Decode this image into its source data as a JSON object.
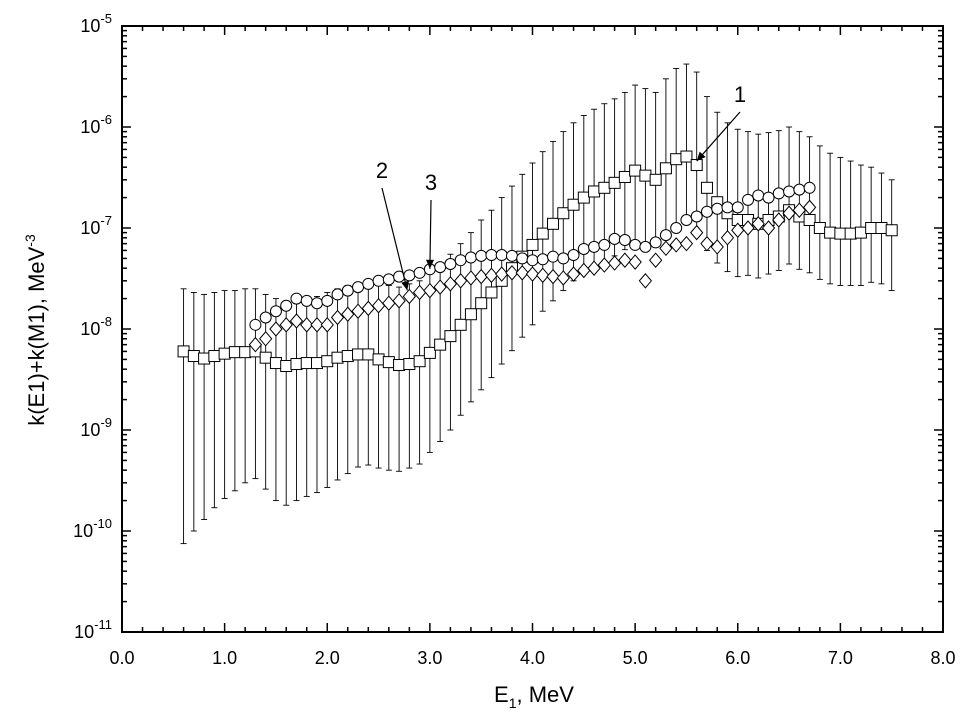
{
  "chart_data": {
    "type": "scatter",
    "title": "",
    "xlabel": {
      "main": "E",
      "sub": "1",
      "rest": ", MeV"
    },
    "ylabel": {
      "main": "k(E1)+k(M1), MeV",
      "sup": "-3"
    },
    "xlim": [
      0,
      8
    ],
    "ylim": [
      1e-11,
      1e-05
    ],
    "yscale": "log",
    "grid": false,
    "legend": "none",
    "x_ticks": [
      "0.0",
      "1.0",
      "2.0",
      "3.0",
      "4.0",
      "5.0",
      "6.0",
      "7.0",
      "8.0"
    ],
    "y_ticks": [
      {
        "base": "10",
        "exp": "-11"
      },
      {
        "base": "10",
        "exp": "-10"
      },
      {
        "base": "10",
        "exp": "-9"
      },
      {
        "base": "10",
        "exp": "-8"
      },
      {
        "base": "10",
        "exp": "-7"
      },
      {
        "base": "10",
        "exp": "-6"
      },
      {
        "base": "10",
        "exp": "-5"
      }
    ],
    "annotations": [
      {
        "text": "1",
        "target": [
          5.6,
          4.2e-07
        ]
      },
      {
        "text": "2",
        "target": [
          2.78,
          2.2e-08
        ]
      },
      {
        "text": "3",
        "target": [
          3.0,
          3.6e-08
        ]
      }
    ],
    "series": [
      {
        "name": "1",
        "marker": "square",
        "x": [
          0.6,
          0.7,
          0.8,
          0.9,
          1.0,
          1.1,
          1.2,
          1.3,
          1.4,
          1.5,
          1.6,
          1.7,
          1.8,
          1.9,
          2.0,
          2.1,
          2.2,
          2.3,
          2.4,
          2.5,
          2.6,
          2.7,
          2.8,
          2.9,
          3.0,
          3.1,
          3.2,
          3.3,
          3.4,
          3.5,
          3.6,
          3.7,
          3.8,
          3.9,
          4.0,
          4.1,
          4.2,
          4.3,
          4.4,
          4.5,
          4.6,
          4.7,
          4.8,
          4.9,
          5.0,
          5.1,
          5.2,
          5.3,
          5.4,
          5.5,
          5.6,
          5.7,
          5.8,
          5.9,
          6.0,
          6.1,
          6.2,
          6.3,
          6.4,
          6.5,
          6.6,
          6.7,
          6.8,
          6.9,
          7.0,
          7.1,
          7.2,
          7.3,
          7.4,
          7.5
        ],
        "y": [
          6e-09,
          5.4e-09,
          5.1e-09,
          5.4e-09,
          5.7e-09,
          5.9e-09,
          5.9e-09,
          6e-09,
          5.2e-09,
          4.6e-09,
          4.3e-09,
          4.5e-09,
          4.6e-09,
          4.6e-09,
          4.8e-09,
          5.2e-09,
          5.4e-09,
          5.6e-09,
          5.6e-09,
          5e-09,
          4.7e-09,
          4.4e-09,
          4.5e-09,
          4.8e-09,
          5.8e-09,
          7e-09,
          8.5e-09,
          1.1e-08,
          1.4e-08,
          1.8e-08,
          2.3e-08,
          3e-08,
          4e-08,
          5.2e-08,
          6.8e-08,
          8.8e-08,
          1.1e-07,
          1.4e-07,
          1.7e-07,
          2e-07,
          2.3e-07,
          2.5e-07,
          2.8e-07,
          3.2e-07,
          3.7e-07,
          3.3e-07,
          3e-07,
          3.9e-07,
          4.8e-07,
          5.1e-07,
          4.2e-07,
          2.5e-07,
          1.8e-07,
          1.4e-07,
          1.2e-07,
          1.2e-07,
          1.1e-07,
          1.2e-07,
          1.3e-07,
          1.5e-07,
          1.3e-07,
          1.2e-07,
          1e-07,
          9e-08,
          8.8e-08,
          8.8e-08,
          9e-08,
          1e-07,
          1e-07,
          9.5e-08
        ],
        "err_low": [
          7.5e-11,
          1e-10,
          1.3e-10,
          1.7e-10,
          2.1e-10,
          2.5e-10,
          3e-10,
          3.3e-10,
          2.6e-10,
          2e-10,
          1.8e-10,
          2e-10,
          2.2e-10,
          2.4e-10,
          2.7e-10,
          3.2e-10,
          3.7e-10,
          4.3e-10,
          4.5e-10,
          4.2e-10,
          4e-10,
          3.9e-10,
          4.2e-10,
          4.6e-10,
          6e-10,
          7.7e-10,
          1e-09,
          1.4e-09,
          1.9e-09,
          2.5e-09,
          3.3e-09,
          4.5e-09,
          6.1e-09,
          8.3e-09,
          1.1e-08,
          1.5e-08,
          1.9e-08,
          2.4e-08,
          3e-08,
          3.6e-08,
          4.2e-08,
          4.7e-08,
          5.3e-08,
          6.1e-08,
          7.2e-08,
          7e-08,
          6.8e-08,
          8.6e-08,
          1e-07,
          1.1e-07,
          9.5e-08,
          6e-08,
          4.5e-08,
          3.7e-08,
          3.3e-08,
          3.4e-08,
          3.2e-08,
          3.5e-08,
          3.8e-08,
          4.4e-08,
          3.9e-08,
          3.6e-08,
          3.1e-08,
          2.8e-08,
          2.7e-08,
          2.7e-08,
          2.7e-08,
          2.9e-08,
          2.8e-08,
          2.4e-08
        ],
        "err_high": [
          2.5e-08,
          2.3e-08,
          2.2e-08,
          2.3e-08,
          2.4e-08,
          2.4e-08,
          2.5e-08,
          2.5e-08,
          2.2e-08,
          2e-08,
          1.9e-08,
          2e-08,
          2.1e-08,
          2.1e-08,
          2.3e-08,
          2.5e-08,
          2.7e-08,
          2.9e-08,
          3e-08,
          2.8e-08,
          2.7e-08,
          2.6e-08,
          2.8e-08,
          3e-08,
          3.6e-08,
          4.5e-08,
          5.5e-08,
          7e-08,
          9e-08,
          1.2e-07,
          1.5e-07,
          2e-07,
          2.6e-07,
          3.4e-07,
          4.4e-07,
          5.7e-07,
          7.2e-07,
          9e-07,
          1.1e-06,
          1.3e-06,
          1.5e-06,
          1.7e-06,
          1.9e-06,
          2.2e-06,
          2.6e-06,
          2.4e-06,
          2.2e-06,
          3e-06,
          3.8e-06,
          4.2e-06,
          3.5e-06,
          2e-06,
          1.4e-06,
          1.1e-06,
          9.5e-07,
          9e-07,
          8.5e-07,
          8.8e-07,
          9.2e-07,
          1e-06,
          9e-07,
          8e-07,
          6.5e-07,
          5.5e-07,
          5e-07,
          4.6e-07,
          4.2e-07,
          4e-07,
          3.5e-07,
          3e-07
        ]
      },
      {
        "name": "2",
        "marker": "diamond",
        "x": [
          1.3,
          1.4,
          1.5,
          1.6,
          1.7,
          1.8,
          1.9,
          2.0,
          2.1,
          2.2,
          2.3,
          2.4,
          2.5,
          2.6,
          2.7,
          2.8,
          2.9,
          3.0,
          3.1,
          3.2,
          3.3,
          3.4,
          3.5,
          3.6,
          3.7,
          3.8,
          3.9,
          4.0,
          4.1,
          4.2,
          4.3,
          4.4,
          4.5,
          4.6,
          4.7,
          4.8,
          4.9,
          5.0,
          5.1,
          5.2,
          5.3,
          5.4,
          5.5,
          5.6,
          5.7,
          5.8,
          5.9,
          6.0,
          6.1,
          6.2,
          6.3,
          6.4,
          6.5,
          6.6,
          6.7
        ],
        "y": [
          7e-09,
          8e-09,
          1e-08,
          1.1e-08,
          1.2e-08,
          1.1e-08,
          1.1e-08,
          1.1e-08,
          1.3e-08,
          1.4e-08,
          1.5e-08,
          1.6e-08,
          1.7e-08,
          1.8e-08,
          1.9e-08,
          2.1e-08,
          2.3e-08,
          2.4e-08,
          2.6e-08,
          2.8e-08,
          3e-08,
          3.2e-08,
          3.3e-08,
          3.4e-08,
          3.5e-08,
          3.6e-08,
          3.6e-08,
          3.5e-08,
          3.4e-08,
          3.3e-08,
          3.2e-08,
          3.5e-08,
          3.8e-08,
          4e-08,
          4.3e-08,
          4.5e-08,
          4.8e-08,
          4.6e-08,
          3e-08,
          4.8e-08,
          6.3e-08,
          6.8e-08,
          7e-08,
          9e-08,
          7e-08,
          6.5e-08,
          8e-08,
          9.5e-08,
          1e-07,
          1.1e-07,
          1e-07,
          1.2e-07,
          1.4e-07,
          1.5e-07,
          1.6e-07
        ],
        "err_low": [
          6.5e-09,
          7.4e-09,
          9.2e-09,
          1e-08,
          1.1e-08,
          1e-08,
          1e-08,
          1e-08,
          1.2e-08,
          1.3e-08,
          1.4e-08,
          1.5e-08,
          1.6e-08,
          1.7e-08,
          1.8e-08,
          2e-08,
          2.2e-08,
          2.3e-08,
          2.5e-08,
          2.7e-08,
          2.9e-08,
          3.1e-08,
          3.2e-08,
          3.3e-08,
          3.4e-08,
          3.5e-08,
          3.5e-08,
          3.4e-08,
          3.3e-08,
          3.2e-08,
          3.1e-08,
          3.4e-08,
          3.7e-08,
          3.9e-08,
          4.2e-08,
          4.4e-08,
          4.7e-08,
          4.5e-08,
          2.9e-08,
          4.7e-08,
          6.2e-08,
          6.7e-08,
          6.9e-08,
          8.9e-08,
          6.9e-08,
          6.4e-08,
          7.9e-08,
          9.4e-08,
          9.9e-08,
          1.09e-07,
          9.9e-08,
          1.19e-07,
          1.38e-07,
          1.48e-07,
          1.58e-07
        ],
        "err_high": [
          7.5e-09,
          8.6e-09,
          1.08e-08,
          1.2e-08,
          1.3e-08,
          1.2e-08,
          1.2e-08,
          1.2e-08,
          1.4e-08,
          1.5e-08,
          1.6e-08,
          1.7e-08,
          1.8e-08,
          1.9e-08,
          2e-08,
          2.2e-08,
          2.4e-08,
          2.5e-08,
          2.7e-08,
          2.9e-08,
          3.1e-08,
          3.3e-08,
          3.4e-08,
          3.5e-08,
          3.6e-08,
          3.7e-08,
          3.7e-08,
          3.6e-08,
          3.5e-08,
          3.4e-08,
          3.3e-08,
          3.6e-08,
          3.9e-08,
          4.1e-08,
          4.4e-08,
          4.6e-08,
          4.9e-08,
          4.7e-08,
          3.1e-08,
          4.9e-08,
          6.4e-08,
          6.9e-08,
          7.1e-08,
          9.1e-08,
          7.1e-08,
          6.6e-08,
          8.1e-08,
          9.6e-08,
          1.01e-07,
          1.11e-07,
          1.01e-07,
          1.21e-07,
          1.42e-07,
          1.52e-07,
          1.62e-07
        ]
      },
      {
        "name": "3",
        "marker": "circle",
        "x": [
          1.3,
          1.4,
          1.5,
          1.6,
          1.7,
          1.8,
          1.9,
          2.0,
          2.1,
          2.2,
          2.3,
          2.4,
          2.5,
          2.6,
          2.7,
          2.8,
          2.9,
          3.0,
          3.1,
          3.2,
          3.3,
          3.4,
          3.5,
          3.6,
          3.7,
          3.8,
          3.9,
          4.0,
          4.1,
          4.2,
          4.3,
          4.4,
          4.5,
          4.6,
          4.7,
          4.8,
          4.9,
          5.0,
          5.1,
          5.2,
          5.3,
          5.4,
          5.5,
          5.6,
          5.7,
          5.8,
          5.9,
          6.0,
          6.1,
          6.2,
          6.3,
          6.4,
          6.5,
          6.6,
          6.7
        ],
        "y": [
          1.1e-08,
          1.3e-08,
          1.5e-08,
          1.7e-08,
          2e-08,
          1.9e-08,
          1.8e-08,
          1.9e-08,
          2.2e-08,
          2.4e-08,
          2.6e-08,
          2.8e-08,
          3e-08,
          3.1e-08,
          3.3e-08,
          3.4e-08,
          3.6e-08,
          3.9e-08,
          4.1e-08,
          4.4e-08,
          4.8e-08,
          5.1e-08,
          5.3e-08,
          5.4e-08,
          5.4e-08,
          5.3e-08,
          5e-08,
          4.8e-08,
          4.9e-08,
          5.2e-08,
          5e-08,
          5.4e-08,
          6.2e-08,
          6.5e-08,
          6.8e-08,
          7.8e-08,
          7.6e-08,
          6.8e-08,
          6.5e-08,
          7.2e-08,
          8.5e-08,
          1e-07,
          1.2e-07,
          1.3e-07,
          1.45e-07,
          1.55e-07,
          1.6e-07,
          1.6e-07,
          1.9e-07,
          2.1e-07,
          2e-07,
          2.2e-07,
          2.3e-07,
          2.4e-07,
          2.5e-07
        ],
        "err_low": [
          1e-08,
          1.2e-08,
          1.4e-08,
          1.6e-08,
          1.9e-08,
          1.8e-08,
          1.7e-08,
          1.8e-08,
          2.1e-08,
          2.3e-08,
          2.5e-08,
          2.7e-08,
          2.9e-08,
          3e-08,
          3.2e-08,
          3.3e-08,
          3.5e-08,
          3.8e-08,
          4e-08,
          4.3e-08,
          4.7e-08,
          5e-08,
          5.2e-08,
          5.3e-08,
          5.3e-08,
          5.2e-08,
          4.9e-08,
          4.7e-08,
          4.8e-08,
          5.1e-08,
          4.9e-08,
          5.3e-08,
          6.1e-08,
          6.4e-08,
          6.7e-08,
          7.7e-08,
          7.5e-08,
          6.7e-08,
          6.4e-08,
          7.1e-08,
          8.4e-08,
          9.9e-08,
          1.19e-07,
          1.29e-07,
          1.44e-07,
          1.54e-07,
          1.59e-07,
          1.59e-07,
          1.88e-07,
          2.08e-07,
          1.98e-07,
          2.18e-07,
          2.28e-07,
          2.38e-07,
          2.48e-07
        ],
        "err_high": [
          1.2e-08,
          1.4e-08,
          1.6e-08,
          1.8e-08,
          2.1e-08,
          2e-08,
          1.9e-08,
          2e-08,
          2.3e-08,
          2.5e-08,
          2.7e-08,
          2.9e-08,
          3.1e-08,
          3.2e-08,
          3.4e-08,
          3.5e-08,
          3.7e-08,
          4e-08,
          4.2e-08,
          4.5e-08,
          4.9e-08,
          5.2e-08,
          5.4e-08,
          5.5e-08,
          5.5e-08,
          5.4e-08,
          5.1e-08,
          4.9e-08,
          5e-08,
          5.3e-08,
          5.1e-08,
          5.5e-08,
          6.3e-08,
          6.6e-08,
          6.9e-08,
          7.9e-08,
          7.7e-08,
          6.9e-08,
          6.6e-08,
          7.3e-08,
          8.6e-08,
          1.01e-07,
          1.21e-07,
          1.31e-07,
          1.46e-07,
          1.56e-07,
          1.61e-07,
          1.61e-07,
          1.92e-07,
          2.12e-07,
          2.02e-07,
          2.22e-07,
          2.32e-07,
          2.42e-07,
          2.52e-07
        ]
      }
    ]
  }
}
